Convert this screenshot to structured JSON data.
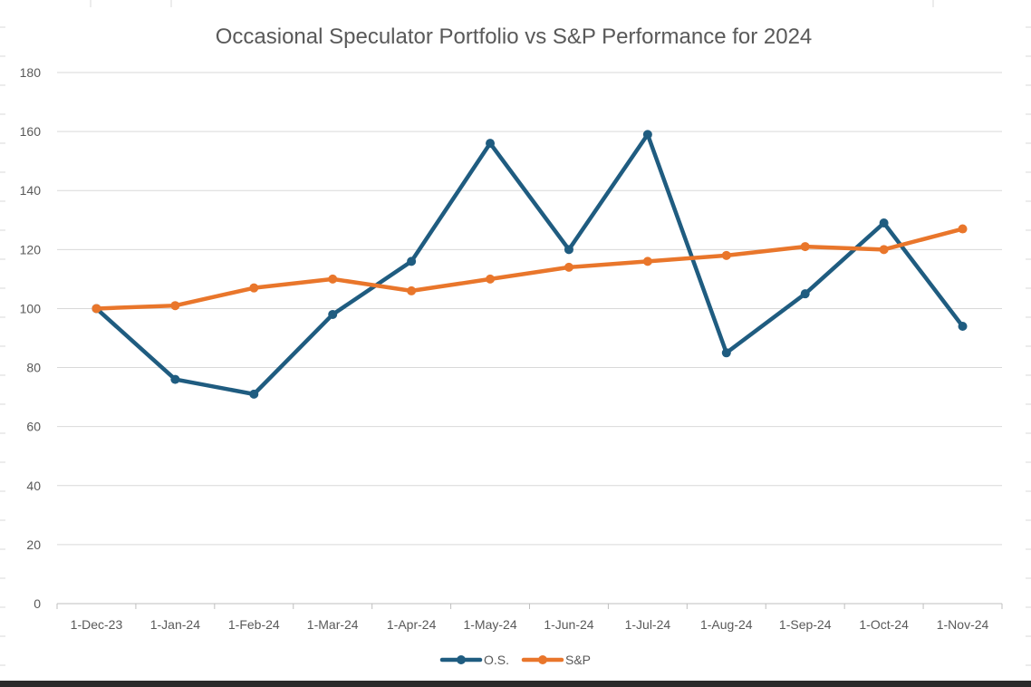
{
  "chart_data": {
    "type": "line",
    "title": "Occasional Speculator Portfolio vs S&P Performance for 2024",
    "xlabel": "",
    "ylabel": "",
    "categories": [
      "1-Dec-23",
      "1-Jan-24",
      "1-Feb-24",
      "1-Mar-24",
      "1-Apr-24",
      "1-May-24",
      "1-Jun-24",
      "1-Jul-24",
      "1-Aug-24",
      "1-Sep-24",
      "1-Oct-24",
      "1-Nov-24"
    ],
    "ylim": [
      0,
      180
    ],
    "yticks": [
      0,
      20,
      40,
      60,
      80,
      100,
      120,
      140,
      160,
      180
    ],
    "grid": true,
    "legend_position": "bottom",
    "series": [
      {
        "name": "O.S.",
        "color": "#1F5C80",
        "values": [
          100,
          76,
          71,
          98,
          116,
          156,
          120,
          159,
          85,
          105,
          129,
          94
        ]
      },
      {
        "name": "S&P",
        "color": "#E9762B",
        "values": [
          100,
          101,
          107,
          110,
          106,
          110,
          114,
          116,
          118,
          121,
          120,
          127
        ]
      }
    ]
  }
}
